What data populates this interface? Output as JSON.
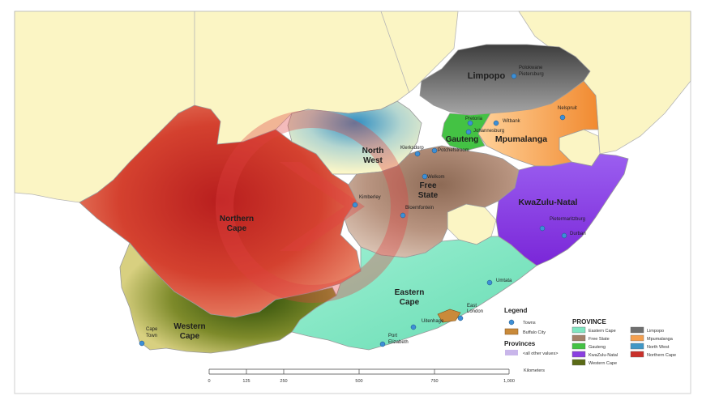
{
  "provinces": {
    "limpopo": {
      "label": "Limpopo",
      "color": "#6f6f6f"
    },
    "mpumalanga": {
      "label": "Mpumalanga",
      "color": "#f4a050"
    },
    "gauteng": {
      "label": "Gauteng",
      "color": "#44c244"
    },
    "north_west": {
      "label_line1": "North",
      "label_line2": "West",
      "color": "#3f97c6"
    },
    "free_state": {
      "label_line1": "Free",
      "label_line2": "State",
      "color": "#a4816a"
    },
    "kwazulu_natal": {
      "label": "KwaZulu-Natal",
      "color": "#8a3fe0"
    },
    "northern_cape": {
      "label_line1": "Northern",
      "label_line2": "Cape",
      "color": "#c9302a"
    },
    "eastern_cape": {
      "label_line1": "Eastern",
      "label_line2": "Cape",
      "color": "#7fe6c1"
    },
    "western_cape": {
      "label_line1": "Western",
      "label_line2": "Cape",
      "color": "#5a6a16"
    }
  },
  "towns": {
    "polokwane": {
      "line1": "Polokwane",
      "line2": "Pietersburg"
    },
    "pretoria": "Pretoria",
    "witbank": "Witbank",
    "johannesburg": "Johannesburg",
    "nelspruit": "Nelspruit",
    "klerksdorp": "Klerksdorp",
    "potchefstroom": "Potchefstroom",
    "welkom": "Welkom",
    "kimberley": "Kimberley",
    "bloemfontein": "Bloemfontein",
    "pietermaritzburg": "Pietermaritzburg",
    "durban": "Durban",
    "umtata": "Umtata",
    "east_london": {
      "line1": "East",
      "line2": "London"
    },
    "uitenhage": "Uitenhage",
    "port_elizabeth": {
      "line1": "Port",
      "line2": "Elizabeth"
    },
    "cape_town": {
      "line1": "Cape",
      "line2": "Town"
    }
  },
  "legend": {
    "title": "Legend",
    "towns": "Towns",
    "buffalo_city": "Buffalo City",
    "provinces_title": "Provinces",
    "all_other_values": "<all other values>",
    "province_title": "PROVINCE",
    "items": [
      {
        "label": "Eastern Cape",
        "color": "#7fe6c1"
      },
      {
        "label": "Limpopo",
        "color": "#6f6f6f"
      },
      {
        "label": "Free State",
        "color": "#a4816a"
      },
      {
        "label": "Mpumalanga",
        "color": "#f4a050"
      },
      {
        "label": "Gauteng",
        "color": "#44c244"
      },
      {
        "label": "North West",
        "color": "#3f97c6"
      },
      {
        "label": "KwaZulu-Natal",
        "color": "#8a3fe0"
      },
      {
        "label": "Northern Cape",
        "color": "#c9302a"
      },
      {
        "label": "Western Cape",
        "color": "#5a6a16"
      }
    ]
  },
  "scale_bar": {
    "ticks": [
      "0",
      "125",
      "250",
      "500",
      "750",
      "1,000"
    ],
    "unit": "Kilometers"
  },
  "colors": {
    "neighbor_land": "#fbf5c4",
    "ocean": "#ffffff",
    "border": "#a8a8a8"
  }
}
